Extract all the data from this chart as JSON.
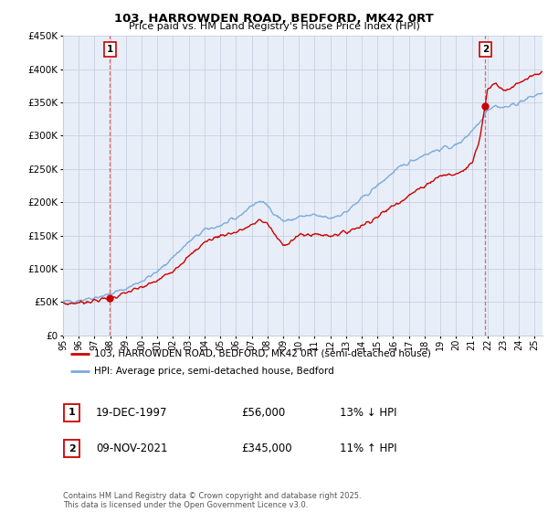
{
  "title": "103, HARROWDEN ROAD, BEDFORD, MK42 0RT",
  "subtitle": "Price paid vs. HM Land Registry's House Price Index (HPI)",
  "legend_line1": "103, HARROWDEN ROAD, BEDFORD, MK42 0RT (semi-detached house)",
  "legend_line2": "HPI: Average price, semi-detached house, Bedford",
  "footer": "Contains HM Land Registry data © Crown copyright and database right 2025.\nThis data is licensed under the Open Government Licence v3.0.",
  "sale1_label": "1",
  "sale1_date": "19-DEC-1997",
  "sale1_price": "£56,000",
  "sale1_hpi": "13% ↓ HPI",
  "sale2_label": "2",
  "sale2_date": "09-NOV-2021",
  "sale2_price": "£345,000",
  "sale2_hpi": "11% ↑ HPI",
  "sale1_year": 1997.97,
  "sale1_value": 56000,
  "sale2_year": 2021.86,
  "sale2_value": 345000,
  "red_color": "#cc0000",
  "blue_color": "#7aaadd",
  "dashed_color": "#dd4444",
  "chart_bg": "#e8eef8",
  "bg_color": "#ffffff",
  "grid_color": "#c8d0e0",
  "ylim": [
    0,
    450000
  ],
  "xlim_start": 1995,
  "xlim_end": 2025.5,
  "yticks": [
    0,
    50000,
    100000,
    150000,
    200000,
    250000,
    300000,
    350000,
    400000,
    450000
  ],
  "ytick_labels": [
    "£0",
    "£50K",
    "£100K",
    "£150K",
    "£200K",
    "£250K",
    "£300K",
    "£350K",
    "£400K",
    "£450K"
  ]
}
